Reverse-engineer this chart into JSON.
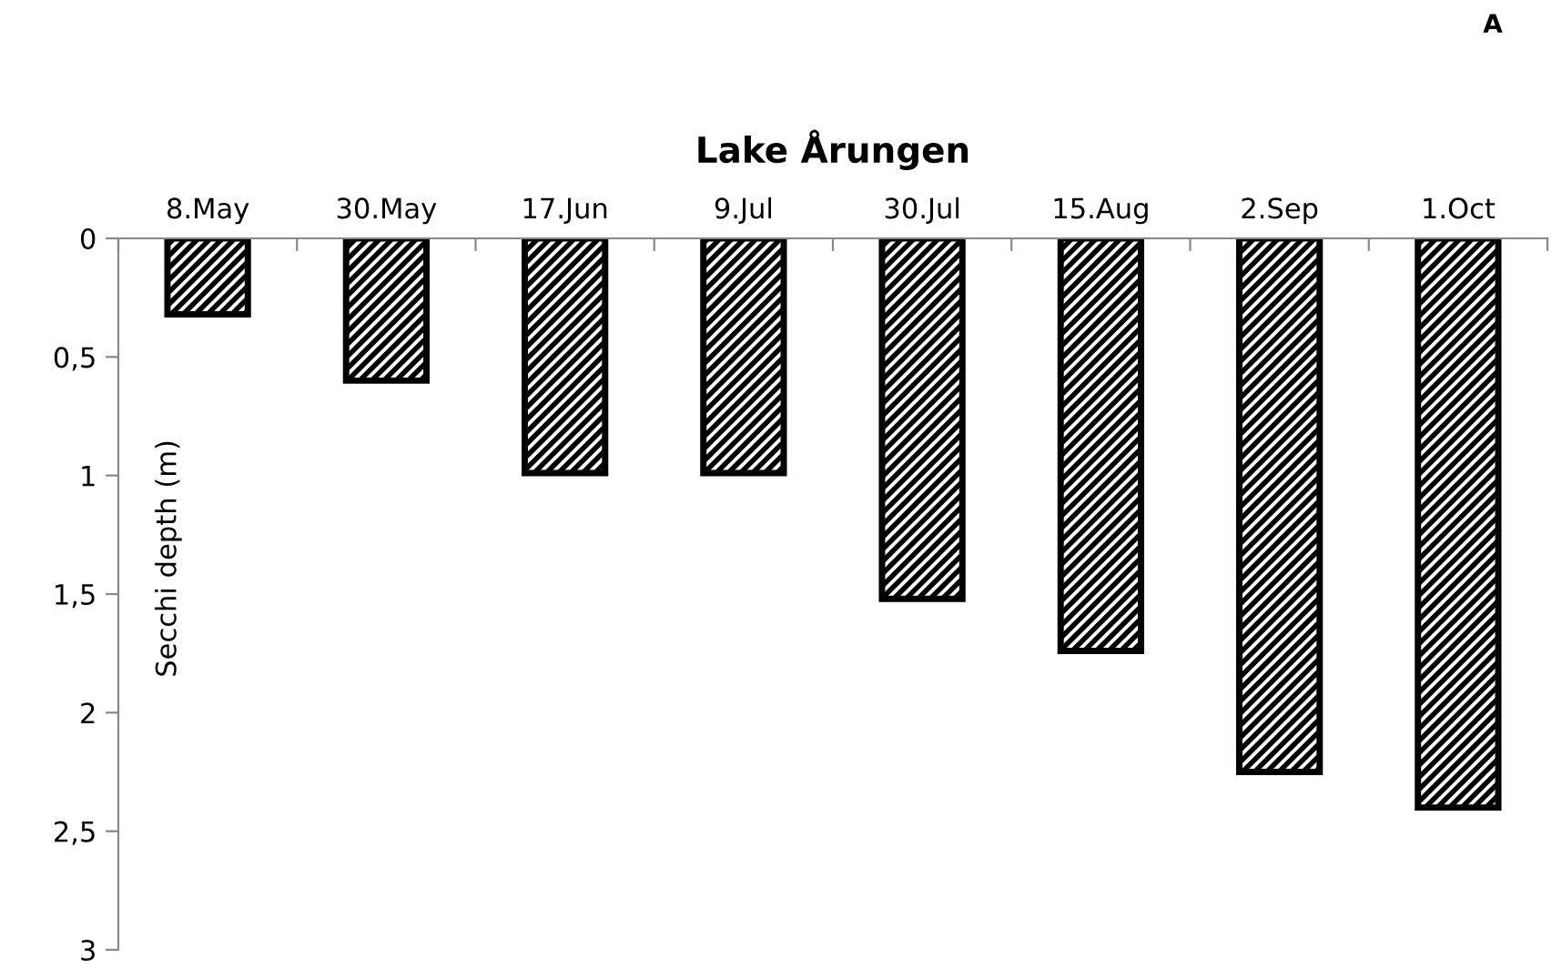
{
  "chart_data": {
    "type": "bar",
    "title": "Lake Årungen",
    "ylabel": "Secchi depth (m)",
    "categories": [
      "8.May",
      "30.May",
      "17.Jun",
      "9.Jul",
      "30.Jul",
      "15.Aug",
      "2.Sep",
      "1.Oct"
    ],
    "values": [
      0.32,
      0.6,
      0.99,
      0.99,
      1.52,
      1.74,
      2.25,
      2.4
    ],
    "color": "#000000",
    "ylim": [
      3,
      0
    ],
    "yticks": [
      0,
      {
        "value": 0.5,
        "label": "0,5"
      },
      1,
      {
        "value": 1.5,
        "label": "1,5"
      },
      2,
      {
        "value": 2.5,
        "label": "2,5"
      },
      3
    ],
    "grid": false,
    "legend": false,
    "annotations": [
      "A"
    ]
  }
}
